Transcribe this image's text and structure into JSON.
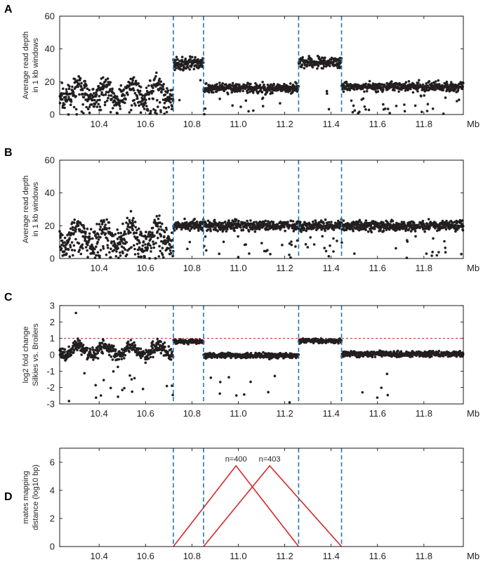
{
  "chart_data": [
    {
      "panel": "A",
      "type": "scatter",
      "ylabel": [
        "Average read depth",
        "in 1 kb windows"
      ],
      "xlim": [
        10.23,
        11.97
      ],
      "ylim": [
        0,
        60
      ],
      "xticks": [
        "10.4",
        "10.6",
        "10.8",
        "11.0",
        "11.2",
        "11.4",
        "11.6",
        "11.8"
      ],
      "yticks": [
        "0",
        "20",
        "40",
        "60"
      ],
      "x_unit_label": "Mb",
      "vlines": [
        10.72,
        10.85,
        11.26,
        11.445
      ],
      "vline_color": "#1f77b4",
      "point_color": "#231f20",
      "segments": [
        {
          "x": [
            10.23,
            10.72
          ],
          "level": 14,
          "spread": 5,
          "dip_fraction": 0.22,
          "noisy": true
        },
        {
          "x": [
            10.72,
            10.85
          ],
          "level": 31,
          "spread": 3,
          "dip_fraction": 0.02
        },
        {
          "x": [
            10.85,
            11.26
          ],
          "level": 16,
          "spread": 2.2,
          "dip_fraction": 0.06
        },
        {
          "x": [
            11.26,
            11.445
          ],
          "level": 32,
          "spread": 2.5,
          "dip_fraction": 0.02
        },
        {
          "x": [
            11.445,
            11.97
          ],
          "level": 17,
          "spread": 2.2,
          "dip_fraction": 0.06
        }
      ],
      "outliers": []
    },
    {
      "panel": "B",
      "type": "scatter",
      "ylabel": [
        "Average read depth",
        "in 1 kb windows"
      ],
      "xlim": [
        10.23,
        11.97
      ],
      "ylim": [
        0,
        60
      ],
      "xticks": [
        "10.4",
        "10.6",
        "10.8",
        "11.0",
        "11.2",
        "11.4",
        "11.6",
        "11.8"
      ],
      "yticks": [
        "0",
        "20",
        "40",
        "60"
      ],
      "x_unit_label": "Mb",
      "vlines": [
        10.72,
        10.85,
        11.26,
        11.445
      ],
      "vline_color": "#1f77b4",
      "point_color": "#231f20",
      "segments": [
        {
          "x": [
            10.23,
            10.72
          ],
          "level": 14,
          "spread": 6,
          "dip_fraction": 0.22,
          "noisy": true
        },
        {
          "x": [
            10.72,
            11.97
          ],
          "level": 20,
          "spread": 2.3,
          "dip_fraction": 0.05
        }
      ],
      "outliers": []
    },
    {
      "panel": "C",
      "type": "scatter",
      "ylabel": [
        "log2 fold change",
        "Silkies vs. Broilers"
      ],
      "xlim": [
        10.23,
        11.97
      ],
      "ylim": [
        -3,
        3
      ],
      "xticks": [
        "10.4",
        "10.6",
        "10.8",
        "11.0",
        "11.2",
        "11.4",
        "11.6",
        "11.8"
      ],
      "yticks": [
        "-3",
        "-2",
        "-1",
        "0",
        "1",
        "2",
        "3"
      ],
      "x_unit_label": "Mb",
      "vlines": [
        10.72,
        10.85,
        11.26,
        11.445
      ],
      "vline_color": "#1f77b4",
      "hline": {
        "y": 1,
        "color": "#c0392b"
      },
      "point_color": "#231f20",
      "segments": [
        {
          "x": [
            10.23,
            10.72
          ],
          "level": 0.25,
          "spread": 0.3,
          "dip_fraction": 0.05,
          "noisy": true
        },
        {
          "x": [
            10.72,
            10.85
          ],
          "level": 0.8,
          "spread": 0.1,
          "dip_fraction": 0
        },
        {
          "x": [
            10.85,
            11.26
          ],
          "level": -0.05,
          "spread": 0.12,
          "dip_fraction": 0.02
        },
        {
          "x": [
            11.26,
            11.445
          ],
          "level": 0.85,
          "spread": 0.1,
          "dip_fraction": 0
        },
        {
          "x": [
            11.445,
            11.97
          ],
          "level": 0.05,
          "spread": 0.13,
          "dip_fraction": 0.02
        }
      ],
      "outliers": [
        {
          "x": 10.3,
          "y": 2.55
        },
        {
          "x": 10.5,
          "y": -2.15
        },
        {
          "x": 10.54,
          "y": -1.5
        }
      ]
    },
    {
      "panel": "D",
      "type": "line",
      "ylabel": [
        "mates mapping",
        "distance (log10 bp)"
      ],
      "xlim": [
        10.23,
        11.97
      ],
      "ylim": [
        0,
        7
      ],
      "xticks": [
        "10.4",
        "10.6",
        "10.8",
        "11.0",
        "11.2",
        "11.4",
        "11.6",
        "11.8"
      ],
      "yticks": [
        "0",
        "2",
        "4",
        "6"
      ],
      "x_unit_label": "Mb",
      "vlines": [
        10.72,
        10.85,
        11.26,
        11.445
      ],
      "vline_color": "#1f77b4",
      "series": [
        {
          "x": [
            10.72,
            10.99,
            11.26
          ],
          "y": [
            0,
            5.75,
            0
          ],
          "label": "n=400",
          "color": "#d62728"
        },
        {
          "x": [
            10.85,
            11.135,
            11.445
          ],
          "y": [
            0,
            5.75,
            0
          ],
          "label": "n=403",
          "color": "#d62728"
        }
      ]
    }
  ]
}
